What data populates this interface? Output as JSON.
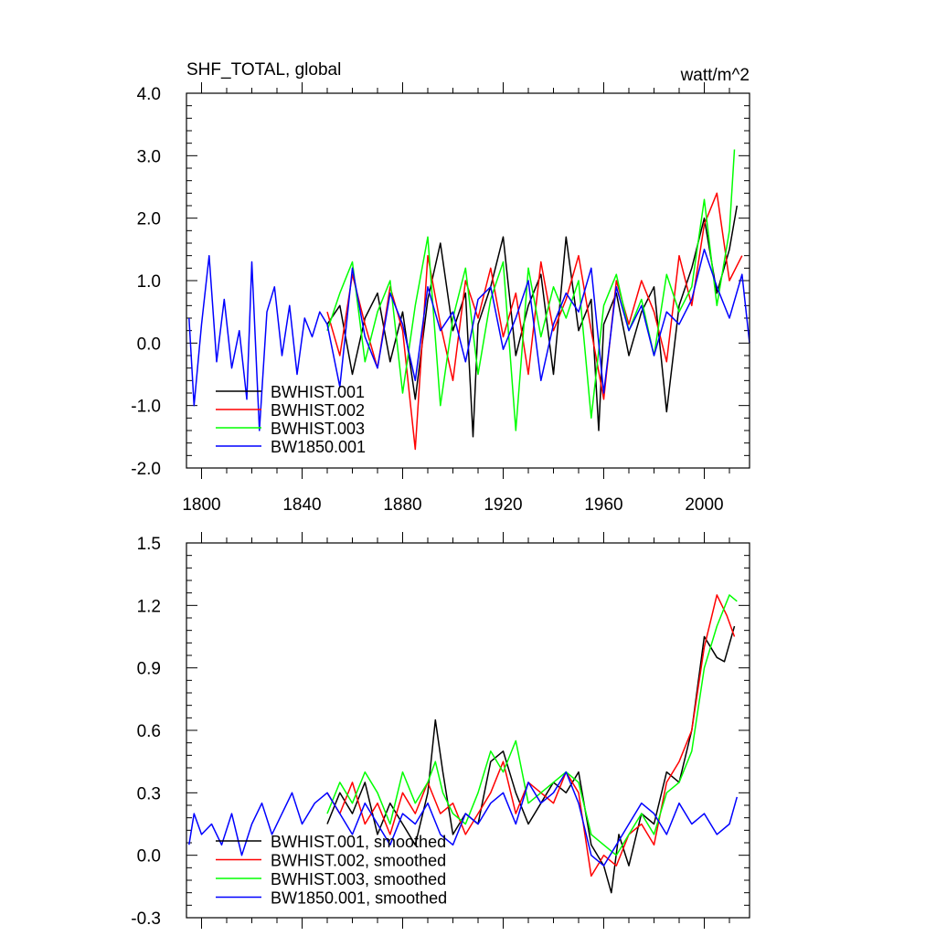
{
  "chart_data": [
    {
      "type": "line",
      "title": "SHF_TOTAL, global",
      "units": "watt/m^2",
      "xlim": [
        1794,
        2018
      ],
      "ylim": [
        -2.0,
        4.0
      ],
      "x_ticks": [
        1800,
        1840,
        1880,
        1920,
        1960,
        2000
      ],
      "x_tick_labels": [
        "1800",
        "1840",
        "1880",
        "1920",
        "1960",
        "2000"
      ],
      "y_ticks": [
        -2.0,
        -1.0,
        0.0,
        1.0,
        2.0,
        3.0,
        4.0
      ],
      "y_tick_labels": [
        "-2.0",
        "-1.0",
        "0.0",
        "1.0",
        "2.0",
        "3.0",
        "4.0"
      ],
      "legend_position": "bottom-left",
      "series": [
        {
          "name": "BWHIST.001",
          "color": "#000000",
          "x": [
            1850,
            1855,
            1860,
            1865,
            1870,
            1875,
            1880,
            1885,
            1890,
            1895,
            1900,
            1905,
            1908,
            1910,
            1915,
            1920,
            1925,
            1930,
            1935,
            1940,
            1945,
            1950,
            1955,
            1958,
            1960,
            1965,
            1970,
            1975,
            1980,
            1985,
            1990,
            1995,
            2000,
            2005,
            2010,
            2013
          ],
          "values": [
            0.3,
            0.6,
            -0.5,
            0.4,
            0.8,
            -0.3,
            0.5,
            -0.9,
            0.7,
            1.6,
            0.2,
            0.8,
            -1.5,
            0.3,
            0.9,
            1.7,
            -0.2,
            0.6,
            1.1,
            -0.5,
            1.7,
            0.2,
            0.7,
            -1.4,
            0.3,
            0.8,
            -0.2,
            0.5,
            0.9,
            -1.1,
            0.6,
            1.2,
            2.0,
            0.8,
            1.5,
            2.2
          ]
        },
        {
          "name": "BWHIST.002",
          "color": "#ff0000",
          "x": [
            1850,
            1855,
            1860,
            1865,
            1870,
            1875,
            1880,
            1885,
            1890,
            1895,
            1900,
            1905,
            1910,
            1915,
            1920,
            1925,
            1930,
            1935,
            1940,
            1945,
            1950,
            1955,
            1960,
            1965,
            1970,
            1975,
            1980,
            1985,
            1990,
            1995,
            2000,
            2005,
            2010,
            2015
          ],
          "values": [
            0.5,
            -0.2,
            1.1,
            0.3,
            -0.4,
            0.9,
            0.2,
            -1.7,
            1.4,
            0.3,
            -0.6,
            1.0,
            0.4,
            1.2,
            0.1,
            0.8,
            -0.5,
            1.3,
            0.2,
            0.7,
            1.4,
            0.2,
            -0.9,
            1.0,
            0.3,
            1.0,
            0.5,
            -0.3,
            1.4,
            0.6,
            1.9,
            2.4,
            1.0,
            1.4
          ]
        },
        {
          "name": "BWHIST.003",
          "color": "#00ff00",
          "x": [
            1850,
            1855,
            1860,
            1865,
            1870,
            1875,
            1880,
            1885,
            1890,
            1895,
            1900,
            1905,
            1910,
            1915,
            1920,
            1925,
            1930,
            1935,
            1940,
            1945,
            1950,
            1955,
            1960,
            1965,
            1970,
            1975,
            1980,
            1985,
            1990,
            1995,
            2000,
            2005,
            2010,
            2012
          ],
          "values": [
            0.2,
            0.8,
            1.3,
            -0.3,
            0.5,
            1.0,
            -0.8,
            0.6,
            1.7,
            -1.0,
            0.4,
            1.2,
            -0.5,
            0.7,
            1.3,
            -1.4,
            1.2,
            0.1,
            0.9,
            0.4,
            1.0,
            -1.2,
            0.6,
            1.1,
            0.2,
            0.7,
            -0.2,
            1.1,
            0.5,
            0.9,
            2.3,
            0.6,
            1.8,
            3.1
          ]
        },
        {
          "name": "BW1850.001",
          "color": "#0000ff",
          "x": [
            1795,
            1797,
            1800,
            1803,
            1806,
            1809,
            1812,
            1815,
            1818,
            1820,
            1823,
            1826,
            1829,
            1832,
            1835,
            1838,
            1841,
            1844,
            1847,
            1850,
            1855,
            1860,
            1865,
            1870,
            1875,
            1880,
            1885,
            1890,
            1895,
            1900,
            1905,
            1910,
            1915,
            1920,
            1925,
            1930,
            1935,
            1940,
            1945,
            1950,
            1955,
            1960,
            1965,
            1970,
            1975,
            1980,
            1985,
            1990,
            1995,
            2000,
            2005,
            2010,
            2015,
            2018
          ],
          "values": [
            0.4,
            -1.0,
            0.3,
            1.4,
            -0.3,
            0.7,
            -0.4,
            0.2,
            -0.9,
            1.3,
            -1.4,
            0.5,
            0.9,
            -0.2,
            0.6,
            -0.5,
            0.4,
            0.1,
            0.5,
            0.3,
            -0.7,
            1.2,
            0.1,
            -0.4,
            0.8,
            0.3,
            -0.6,
            0.9,
            0.2,
            0.5,
            -0.3,
            0.7,
            0.9,
            -0.1,
            0.4,
            1.0,
            -0.6,
            0.3,
            0.8,
            0.5,
            1.2,
            -0.8,
            0.9,
            0.2,
            0.6,
            -0.2,
            0.5,
            0.3,
            0.7,
            1.5,
            0.9,
            0.4,
            1.1,
            0.0
          ]
        }
      ]
    },
    {
      "type": "line",
      "title": "",
      "xlim": [
        1794,
        2018
      ],
      "ylim": [
        -0.3,
        1.5
      ],
      "x_ticks": [
        1800,
        1840,
        1880,
        1920,
        1960,
        2000
      ],
      "y_ticks": [
        -0.3,
        0.0,
        0.3,
        0.6,
        0.9,
        1.2,
        1.5
      ],
      "y_tick_labels": [
        "-0.3",
        "0.0",
        "0.3",
        "0.6",
        "0.9",
        "1.2",
        "1.5"
      ],
      "legend_position": "bottom-left",
      "series": [
        {
          "name": "BWHIST.001, smoothed",
          "color": "#000000",
          "x": [
            1850,
            1855,
            1860,
            1865,
            1870,
            1875,
            1880,
            1885,
            1890,
            1893,
            1896,
            1900,
            1905,
            1910,
            1915,
            1920,
            1925,
            1930,
            1935,
            1940,
            1945,
            1950,
            1955,
            1960,
            1963,
            1966,
            1970,
            1975,
            1980,
            1985,
            1990,
            1995,
            2000,
            2005,
            2008,
            2012
          ],
          "values": [
            0.15,
            0.3,
            0.2,
            0.35,
            0.1,
            0.25,
            0.15,
            0.05,
            0.3,
            0.65,
            0.4,
            0.1,
            0.2,
            0.15,
            0.45,
            0.5,
            0.3,
            0.15,
            0.25,
            0.35,
            0.3,
            0.4,
            0.05,
            -0.05,
            -0.18,
            0.1,
            -0.05,
            0.2,
            0.15,
            0.4,
            0.35,
            0.6,
            1.05,
            0.95,
            0.93,
            1.1
          ]
        },
        {
          "name": "BWHIST.002, smoothed",
          "color": "#ff0000",
          "x": [
            1850,
            1855,
            1860,
            1865,
            1870,
            1875,
            1880,
            1885,
            1890,
            1895,
            1900,
            1905,
            1910,
            1915,
            1920,
            1925,
            1930,
            1935,
            1940,
            1945,
            1950,
            1955,
            1960,
            1965,
            1970,
            1975,
            1980,
            1985,
            1990,
            1995,
            2000,
            2005,
            2009,
            2012
          ],
          "values": [
            0.3,
            0.2,
            0.35,
            0.15,
            0.25,
            0.1,
            0.3,
            0.2,
            0.35,
            0.2,
            0.25,
            0.1,
            0.2,
            0.3,
            0.45,
            0.2,
            0.35,
            0.3,
            0.25,
            0.4,
            0.3,
            -0.1,
            0.0,
            -0.05,
            0.1,
            0.15,
            0.05,
            0.35,
            0.45,
            0.6,
            1.0,
            1.25,
            1.15,
            1.05
          ]
        },
        {
          "name": "BWHIST.003, smoothed",
          "color": "#00ff00",
          "x": [
            1850,
            1855,
            1860,
            1865,
            1870,
            1875,
            1880,
            1885,
            1890,
            1893,
            1896,
            1900,
            1905,
            1910,
            1915,
            1920,
            1925,
            1930,
            1935,
            1940,
            1945,
            1950,
            1955,
            1960,
            1965,
            1970,
            1975,
            1980,
            1985,
            1990,
            1995,
            2000,
            2005,
            2010,
            2013
          ],
          "values": [
            0.2,
            0.35,
            0.25,
            0.4,
            0.3,
            0.15,
            0.4,
            0.25,
            0.35,
            0.45,
            0.3,
            0.2,
            0.15,
            0.3,
            0.5,
            0.4,
            0.55,
            0.25,
            0.3,
            0.35,
            0.4,
            0.35,
            0.1,
            0.05,
            0.0,
            0.1,
            0.2,
            0.1,
            0.3,
            0.35,
            0.5,
            0.9,
            1.1,
            1.25,
            1.22
          ]
        },
        {
          "name": "BW1850.001, smoothed",
          "color": "#0000ff",
          "x": [
            1795,
            1797,
            1800,
            1804,
            1808,
            1812,
            1816,
            1820,
            1824,
            1828,
            1832,
            1836,
            1840,
            1845,
            1850,
            1855,
            1860,
            1865,
            1870,
            1875,
            1880,
            1885,
            1890,
            1895,
            1900,
            1905,
            1910,
            1915,
            1920,
            1925,
            1930,
            1935,
            1940,
            1945,
            1950,
            1955,
            1960,
            1965,
            1970,
            1975,
            1980,
            1985,
            1990,
            1995,
            2000,
            2005,
            2010,
            2013
          ],
          "values": [
            0.05,
            0.2,
            0.1,
            0.15,
            0.05,
            0.2,
            0.0,
            0.15,
            0.25,
            0.1,
            0.2,
            0.3,
            0.15,
            0.25,
            0.3,
            0.2,
            0.1,
            0.25,
            0.15,
            0.05,
            0.2,
            0.15,
            0.25,
            0.1,
            0.05,
            0.2,
            0.15,
            0.25,
            0.3,
            0.15,
            0.35,
            0.25,
            0.3,
            0.4,
            0.25,
            0.0,
            -0.05,
            0.05,
            0.15,
            0.25,
            0.2,
            0.1,
            0.25,
            0.15,
            0.2,
            0.1,
            0.15,
            0.28
          ]
        }
      ]
    }
  ]
}
